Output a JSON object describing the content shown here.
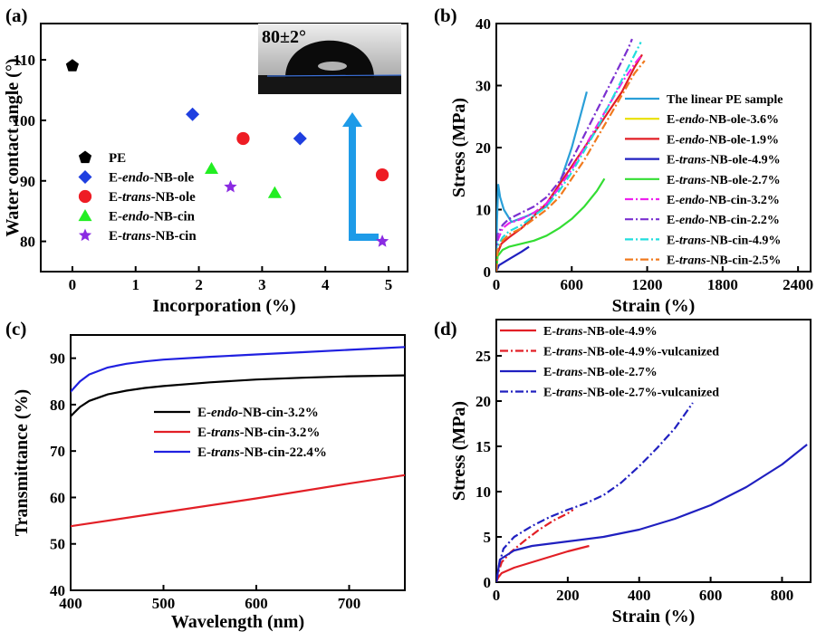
{
  "chart_data": [
    {
      "panel": "(a)",
      "type": "scatter",
      "xlabel": "Incorporation (%)",
      "ylabel": "Water contact angle (°)",
      "xlim": [
        -0.5,
        5.3
      ],
      "ylim": [
        75,
        116
      ],
      "xticks": [
        "0",
        "1",
        "2",
        "3",
        "4",
        "5"
      ],
      "yticks": [
        "80",
        "90",
        "100",
        "110"
      ],
      "legend_position": "bottom-left",
      "inset_label": "80±2°",
      "series": [
        {
          "name": "PE",
          "marker": "pentagon",
          "color": "#000000",
          "points": [
            [
              0,
              109
            ]
          ]
        },
        {
          "name": "E-|endo|-NB-ole",
          "marker": "diamond",
          "color": "#1f3fe0",
          "points": [
            [
              1.9,
              101
            ],
            [
              3.6,
              97
            ]
          ]
        },
        {
          "name": "E-|trans|-NB-ole",
          "marker": "circle",
          "color": "#ee1c24",
          "points": [
            [
              2.7,
              97
            ],
            [
              4.9,
              91
            ]
          ]
        },
        {
          "name": "E-|endo|-NB-cin",
          "marker": "triangle",
          "color": "#22ee22",
          "points": [
            [
              2.2,
              92
            ],
            [
              3.2,
              88
            ]
          ]
        },
        {
          "name": "E-|trans|-NB-cin",
          "marker": "star",
          "color": "#8a2be2",
          "points": [
            [
              2.5,
              89
            ],
            [
              4.9,
              80
            ]
          ]
        }
      ]
    },
    {
      "panel": "(b)",
      "type": "line",
      "xlabel": "Strain (%)",
      "ylabel": "Stress (MPa)",
      "xlim": [
        0,
        2500
      ],
      "ylim": [
        0,
        40
      ],
      "xticks": [
        "0",
        "600",
        "1200",
        "1800",
        "2400"
      ],
      "yticks": [
        "0",
        "10",
        "20",
        "30",
        "40"
      ],
      "legend_position": "right",
      "series": [
        {
          "name": "The linear PE sample",
          "color": "#2a9fd8",
          "dash": "solid",
          "points": [
            [
              0,
              0
            ],
            [
              5,
              8
            ],
            [
              15,
              14
            ],
            [
              30,
              12
            ],
            [
              60,
              10
            ],
            [
              120,
              8
            ],
            [
              250,
              9
            ],
            [
              400,
              10.5
            ],
            [
              500,
              14
            ],
            [
              600,
              20
            ],
            [
              680,
              26
            ],
            [
              720,
              29
            ]
          ]
        },
        {
          "name": "E-|endo|-NB-ole-3.6%",
          "color": "#e8e000",
          "dash": "solid",
          "points": [
            [
              0,
              0
            ],
            [
              5,
              0.5
            ],
            [
              10,
              1
            ]
          ]
        },
        {
          "name": "E-|endo|-NB-ole-1.9%",
          "color": "#e21f26",
          "dash": "solid",
          "points": [
            [
              0,
              0
            ],
            [
              10,
              3
            ],
            [
              40,
              4.5
            ],
            [
              100,
              5.5
            ],
            [
              200,
              7
            ],
            [
              300,
              9
            ],
            [
              400,
              11
            ],
            [
              500,
              14
            ],
            [
              600,
              17
            ],
            [
              700,
              20
            ],
            [
              800,
              23
            ],
            [
              900,
              26
            ],
            [
              1000,
              29
            ],
            [
              1100,
              33
            ],
            [
              1160,
              35
            ]
          ]
        },
        {
          "name": "E-|trans|-NB-ole-4.9%",
          "color": "#2020c0",
          "dash": "solid",
          "points": [
            [
              0,
              0
            ],
            [
              20,
              1
            ],
            [
              100,
              2
            ],
            [
              200,
              3.2
            ],
            [
              260,
              4
            ]
          ]
        },
        {
          "name": "E-|trans|-NB-ole-2.7%",
          "color": "#33dd33",
          "dash": "solid",
          "points": [
            [
              0,
              0
            ],
            [
              10,
              2.5
            ],
            [
              50,
              3.5
            ],
            [
              100,
              4
            ],
            [
              200,
              4.5
            ],
            [
              300,
              5
            ],
            [
              400,
              5.8
            ],
            [
              500,
              7
            ],
            [
              600,
              8.5
            ],
            [
              700,
              10.5
            ],
            [
              800,
              13
            ],
            [
              860,
              15
            ]
          ]
        },
        {
          "name": "E-|endo|-NB-cin-3.2%",
          "color": "#ee22ee",
          "dash": "dashdot",
          "points": [
            [
              0,
              0
            ],
            [
              10,
              5
            ],
            [
              50,
              7
            ],
            [
              100,
              7.8
            ],
            [
              200,
              8.5
            ],
            [
              300,
              9.5
            ],
            [
              400,
              11
            ],
            [
              500,
              13.5
            ],
            [
              600,
              16.5
            ],
            [
              700,
              20
            ],
            [
              800,
              23.5
            ],
            [
              900,
              27
            ],
            [
              1000,
              30.5
            ],
            [
              1100,
              33.5
            ],
            [
              1160,
              35
            ]
          ]
        },
        {
          "name": "E-|endo|-NB-cin-2.2%",
          "color": "#7b30d0",
          "dash": "dashdot",
          "points": [
            [
              0,
              0
            ],
            [
              10,
              6
            ],
            [
              50,
              7.5
            ],
            [
              100,
              8.5
            ],
            [
              200,
              9.5
            ],
            [
              300,
              10.5
            ],
            [
              400,
              12
            ],
            [
              500,
              14.5
            ],
            [
              600,
              18
            ],
            [
              700,
              22
            ],
            [
              800,
              26
            ],
            [
              900,
              30
            ],
            [
              1000,
              34
            ],
            [
              1050,
              36
            ],
            [
              1080,
              37.5
            ]
          ]
        },
        {
          "name": "E-|trans|-NB-cin-4.9%",
          "color": "#22dddd",
          "dash": "dashdot",
          "points": [
            [
              0,
              0
            ],
            [
              10,
              4
            ],
            [
              50,
              5.5
            ],
            [
              100,
              6.5
            ],
            [
              200,
              7.5
            ],
            [
              300,
              9
            ],
            [
              400,
              10.5
            ],
            [
              500,
              13
            ],
            [
              600,
              16
            ],
            [
              700,
              19.5
            ],
            [
              800,
              23
            ],
            [
              900,
              27
            ],
            [
              1000,
              31
            ],
            [
              1100,
              35
            ],
            [
              1150,
              37
            ]
          ]
        },
        {
          "name": "E-|trans|-NB-cin-2.5%",
          "color": "#f07a1e",
          "dash": "dashdot",
          "points": [
            [
              0,
              0
            ],
            [
              10,
              3.5
            ],
            [
              50,
              5
            ],
            [
              100,
              6
            ],
            [
              200,
              7
            ],
            [
              300,
              8.5
            ],
            [
              400,
              10
            ],
            [
              500,
              12
            ],
            [
              600,
              15
            ],
            [
              700,
              18
            ],
            [
              800,
              21.5
            ],
            [
              900,
              25
            ],
            [
              1000,
              28.5
            ],
            [
              1100,
              32
            ],
            [
              1180,
              34
            ]
          ]
        }
      ]
    },
    {
      "panel": "(c)",
      "type": "line",
      "xlabel": "Wavelength (nm)",
      "ylabel": "Transmittance (%)",
      "xlim": [
        400,
        760
      ],
      "ylim": [
        40,
        95
      ],
      "xticks": [
        "400",
        "500",
        "600",
        "700"
      ],
      "yticks": [
        "40",
        "50",
        "60",
        "70",
        "80",
        "90"
      ],
      "legend_position": "center-right",
      "series": [
        {
          "name": "E-|endo|-NB-cin-3.2%",
          "color": "#000000",
          "dash": "solid",
          "points": [
            [
              400,
              77.5
            ],
            [
              410,
              79.5
            ],
            [
              420,
              80.8
            ],
            [
              440,
              82.2
            ],
            [
              460,
              83
            ],
            [
              480,
              83.6
            ],
            [
              500,
              84
            ],
            [
              550,
              84.8
            ],
            [
              600,
              85.4
            ],
            [
              650,
              85.8
            ],
            [
              700,
              86.1
            ],
            [
              760,
              86.3
            ]
          ]
        },
        {
          "name": "E-|trans|-NB-cin-3.2%",
          "color": "#e21f26",
          "dash": "solid",
          "points": [
            [
              400,
              53.8
            ],
            [
              500,
              56.8
            ],
            [
              600,
              59.8
            ],
            [
              700,
              63
            ],
            [
              760,
              64.8
            ]
          ]
        },
        {
          "name": "E-|trans|-NB-cin-22.4%",
          "color": "#2020e0",
          "dash": "solid",
          "points": [
            [
              400,
              82.8
            ],
            [
              410,
              85
            ],
            [
              420,
              86.5
            ],
            [
              440,
              88
            ],
            [
              460,
              88.8
            ],
            [
              480,
              89.3
            ],
            [
              500,
              89.7
            ],
            [
              550,
              90.3
            ],
            [
              600,
              90.8
            ],
            [
              650,
              91.3
            ],
            [
              700,
              91.8
            ],
            [
              760,
              92.4
            ]
          ]
        }
      ]
    },
    {
      "panel": "(d)",
      "type": "line",
      "xlabel": "Strain (%)",
      "ylabel": "Stress (MPa)",
      "xlim": [
        0,
        880
      ],
      "ylim": [
        0,
        29
      ],
      "xticks": [
        "0",
        "200",
        "400",
        "600",
        "800"
      ],
      "yticks": [
        "0",
        "5",
        "10",
        "15",
        "20",
        "25"
      ],
      "legend_position": "top-left",
      "series": [
        {
          "name": "E-|trans|-NB-ole-4.9%",
          "color": "#e21f26",
          "dash": "solid",
          "points": [
            [
              0,
              0
            ],
            [
              5,
              0.5
            ],
            [
              15,
              1
            ],
            [
              50,
              1.6
            ],
            [
              100,
              2.2
            ],
            [
              150,
              2.8
            ],
            [
              200,
              3.4
            ],
            [
              260,
              4
            ]
          ]
        },
        {
          "name": "E-|trans|-NB-ole-4.9%-vulcanized",
          "color": "#e21f26",
          "dash": "dashdot",
          "points": [
            [
              0,
              0
            ],
            [
              5,
              1
            ],
            [
              15,
              2.2
            ],
            [
              40,
              3.3
            ],
            [
              80,
              4.6
            ],
            [
              120,
              5.8
            ],
            [
              160,
              6.8
            ],
            [
              200,
              7.6
            ],
            [
              215,
              8
            ]
          ]
        },
        {
          "name": "E-|trans|-NB-ole-2.7%",
          "color": "#2020c0",
          "dash": "solid",
          "points": [
            [
              0,
              0
            ],
            [
              10,
              2.5
            ],
            [
              50,
              3.5
            ],
            [
              100,
              4
            ],
            [
              200,
              4.5
            ],
            [
              300,
              5
            ],
            [
              400,
              5.8
            ],
            [
              500,
              7
            ],
            [
              600,
              8.5
            ],
            [
              700,
              10.5
            ],
            [
              800,
              13
            ],
            [
              870,
              15.2
            ]
          ]
        },
        {
          "name": "E-|trans|-NB-ole-2.7%-vulcanized",
          "color": "#2020c0",
          "dash": "dashdot",
          "points": [
            [
              0,
              0
            ],
            [
              8,
              2
            ],
            [
              20,
              3.7
            ],
            [
              50,
              5
            ],
            [
              100,
              6.2
            ],
            [
              150,
              7.2
            ],
            [
              200,
              8
            ],
            [
              250,
              8.7
            ],
            [
              300,
              9.6
            ],
            [
              350,
              11
            ],
            [
              400,
              12.8
            ],
            [
              450,
              14.8
            ],
            [
              500,
              17
            ],
            [
              550,
              19.8
            ]
          ]
        }
      ]
    }
  ]
}
